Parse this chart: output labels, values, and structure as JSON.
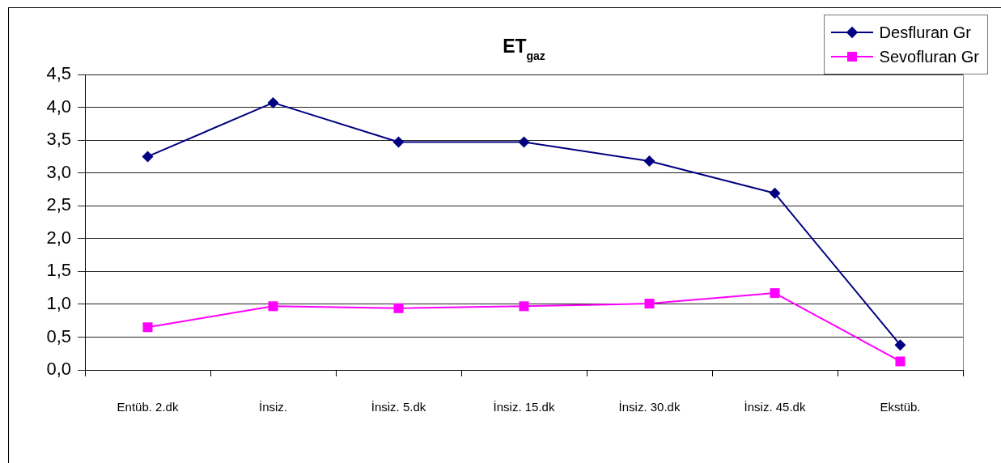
{
  "chart_data": {
    "type": "line",
    "title": "ET$_{gaz}$",
    "categories": [
      "Entüb. 2.dk",
      "İnsiz.",
      "İnsiz. 5.dk",
      "İnsiz. 15.dk",
      "İnsiz. 30.dk",
      "İnsiz. 45.dk",
      "Ekstüb."
    ],
    "series": [
      {
        "name": "Desfluran Gr",
        "color": "#000080",
        "marker": "diamond",
        "values": [
          3.25,
          4.07,
          3.47,
          3.47,
          3.18,
          2.69,
          0.38
        ]
      },
      {
        "name": "Sevofluran Gr",
        "color": "#ff00ff",
        "marker": "square",
        "values": [
          0.65,
          0.97,
          0.94,
          0.97,
          1.01,
          1.17,
          0.13
        ]
      }
    ],
    "ylim": [
      0,
      4.5
    ],
    "yticks": [
      {
        "value": 0,
        "label": "0,0"
      },
      {
        "value": 0.5,
        "label": "0,5"
      },
      {
        "value": 1,
        "label": "1,0"
      },
      {
        "value": 1.5,
        "label": "1,5"
      },
      {
        "value": 2,
        "label": "2,0"
      },
      {
        "value": 2.5,
        "label": "2,5"
      },
      {
        "value": 3,
        "label": "3,0"
      },
      {
        "value": 3.5,
        "label": "3,5"
      },
      {
        "value": 4,
        "label": "4,0"
      },
      {
        "value": 4.5,
        "label": "4,5"
      }
    ],
    "grid": "y",
    "legend": "top right",
    "line_style": "solid"
  }
}
